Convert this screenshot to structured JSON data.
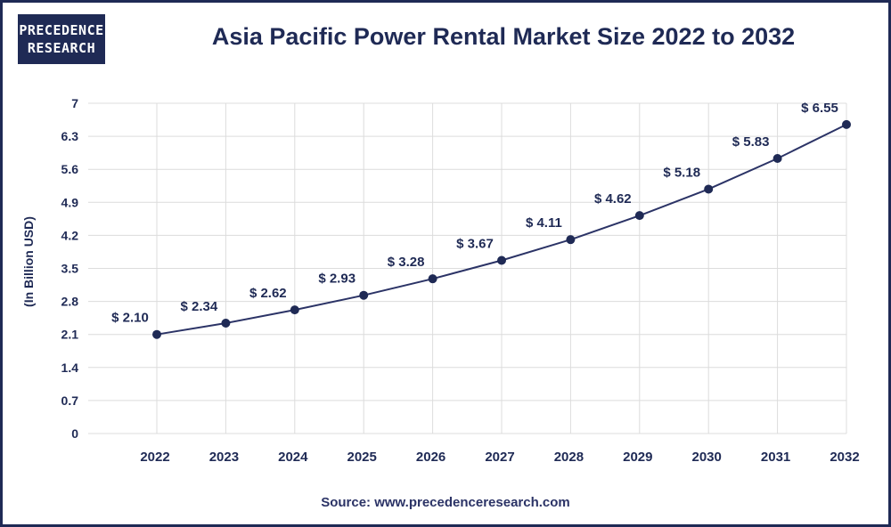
{
  "logo": {
    "line1": "PRECEDENCE",
    "line2": "RESEARCH"
  },
  "chart_data": {
    "type": "line",
    "title": "Asia Pacific Power Rental Market Size 2022 to 2032",
    "xlabel": "",
    "ylabel": "(In Billion USD)",
    "categories": [
      "2022",
      "2023",
      "2024",
      "2025",
      "2026",
      "2027",
      "2028",
      "2029",
      "2030",
      "2031",
      "2032"
    ],
    "series": [
      {
        "values": [
          2.1,
          2.34,
          2.62,
          2.93,
          3.28,
          3.67,
          4.11,
          4.62,
          5.18,
          5.83,
          6.55
        ]
      }
    ],
    "data_labels": [
      "$ 2.10",
      "$ 2.34",
      "$ 2.62",
      "$ 2.93",
      "$ 3.28",
      "$ 3.67",
      "$ 4.11",
      "$ 4.62",
      "$ 5.18",
      "$ 5.83",
      "$ 6.55"
    ],
    "y_ticks": [
      "0",
      "0.7",
      "1.4",
      "2.1",
      "2.8",
      "3.5",
      "4.2",
      "4.9",
      "5.6",
      "6.3",
      "7"
    ],
    "ylim": [
      0,
      7
    ],
    "grid": true,
    "colors": {
      "line": "#2b3366",
      "marker": "#1f2a55",
      "grid": "#dcdcdc",
      "text": "#1f2a55"
    }
  },
  "source": "Source: www.precedenceresearch.com"
}
